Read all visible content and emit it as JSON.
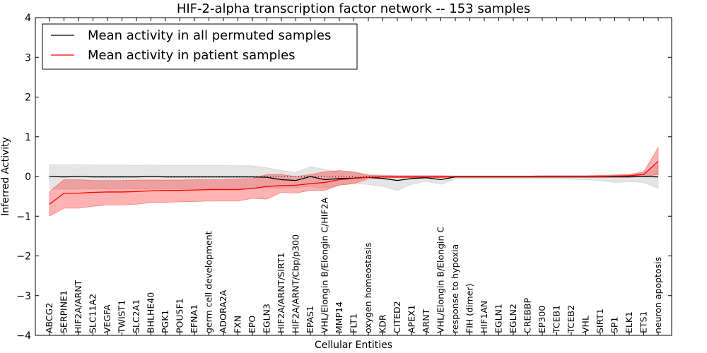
{
  "chart_data": {
    "type": "line",
    "title": "HIF-2-alpha transcription factor network -- 153 samples",
    "xlabel": "Cellular Entities",
    "ylabel": "Inferred Activity",
    "ylim": [
      -4,
      4
    ],
    "yticks": [
      4,
      3,
      2,
      1,
      0,
      -1,
      -2,
      -3,
      -4
    ],
    "ytick_labels": [
      "4",
      "3",
      "2",
      "1",
      "0",
      "−1",
      "−2",
      "−3",
      "−4"
    ],
    "reference_line": 0,
    "legend_position": "top-left",
    "categories": [
      "ABCG2",
      "SERPINE1",
      "HIF2A/ARNT",
      "SLC11A2",
      "VEGFA",
      "TWIST1",
      "SLC2A1",
      "BHLHE40",
      "PGK1",
      "POU5F1",
      "EFNA1",
      "germ cell development",
      "ADORA2A",
      "FXN",
      "EPO",
      "EGLN3",
      "HIF2A/ARNT/SIRT1",
      "HIF2A/ARNT/Cbp/p300",
      "EPAS1",
      "VHL/Elongin B/Elongin C/HIF2A",
      "MMP14",
      "FLT1",
      "oxygen homeostasis",
      "KDR",
      "CITED2",
      "APEX1",
      "ARNT",
      "VHL/Elongin B/Elongin C",
      "response to hypoxia",
      "FIH (dimer)",
      "HIF1AN",
      "EGLN1",
      "EGLN2",
      "CREBBP",
      "EP300",
      "TCEB1",
      "TCEB2",
      "VHL",
      "SIRT1",
      "SP1",
      "ELK1",
      "ETS1",
      "neuron apoptosis"
    ],
    "series": [
      {
        "name": "Mean activity in all permuted samples",
        "color": "#000000",
        "values": [
          0.0,
          -0.01,
          0.0,
          -0.01,
          -0.01,
          -0.01,
          -0.01,
          0.0,
          -0.01,
          -0.01,
          -0.01,
          -0.01,
          -0.01,
          -0.01,
          -0.01,
          -0.02,
          -0.08,
          -0.1,
          0.0,
          -0.08,
          -0.05,
          -0.04,
          -0.02,
          -0.05,
          -0.1,
          -0.05,
          -0.03,
          -0.08,
          -0.01,
          -0.01,
          -0.01,
          -0.01,
          -0.01,
          -0.01,
          -0.01,
          -0.01,
          -0.01,
          -0.01,
          -0.01,
          -0.01,
          -0.01,
          0.0,
          -0.01
        ],
        "band_upper": [
          0.3,
          0.3,
          0.3,
          0.29,
          0.29,
          0.29,
          0.28,
          0.29,
          0.28,
          0.28,
          0.28,
          0.28,
          0.28,
          0.27,
          0.27,
          0.22,
          0.15,
          0.1,
          0.25,
          0.18,
          0.12,
          0.1,
          0.05,
          0.04,
          0.02,
          0.02,
          0.02,
          0.02,
          0.02,
          0.02,
          0.02,
          0.02,
          0.02,
          0.02,
          0.02,
          0.02,
          0.02,
          0.02,
          0.02,
          0.03,
          0.05,
          0.1,
          0.3
        ],
        "band_lower": [
          -0.32,
          -0.32,
          -0.32,
          -0.31,
          -0.31,
          -0.31,
          -0.31,
          -0.31,
          -0.31,
          -0.31,
          -0.31,
          -0.31,
          -0.31,
          -0.31,
          -0.31,
          -0.28,
          -0.3,
          -0.28,
          -0.25,
          -0.3,
          -0.22,
          -0.18,
          -0.2,
          -0.25,
          -0.35,
          -0.2,
          -0.12,
          -0.2,
          -0.06,
          -0.05,
          -0.05,
          -0.05,
          -0.05,
          -0.05,
          -0.05,
          -0.06,
          -0.07,
          -0.08,
          -0.1,
          -0.15,
          -0.13,
          -0.15,
          -0.3
        ]
      },
      {
        "name": "Mean activity in patient samples",
        "color": "#ff0000",
        "values": [
          -0.7,
          -0.42,
          -0.42,
          -0.4,
          -0.39,
          -0.39,
          -0.38,
          -0.36,
          -0.35,
          -0.35,
          -0.34,
          -0.33,
          -0.33,
          -0.33,
          -0.3,
          -0.25,
          -0.23,
          -0.22,
          -0.18,
          -0.15,
          -0.08,
          -0.05,
          -0.02,
          -0.01,
          -0.01,
          -0.01,
          -0.01,
          -0.01,
          0.0,
          0.0,
          0.0,
          0.0,
          0.0,
          0.0,
          0.0,
          0.0,
          0.0,
          0.0,
          0.0,
          0.01,
          0.02,
          0.05,
          0.38
        ],
        "band_upper": [
          -0.38,
          -0.08,
          -0.08,
          -0.1,
          -0.1,
          -0.1,
          -0.09,
          -0.09,
          -0.09,
          -0.09,
          -0.08,
          -0.08,
          -0.08,
          -0.06,
          -0.05,
          0.05,
          0.05,
          0.0,
          0.05,
          0.12,
          0.15,
          0.12,
          0.03,
          0.02,
          0.02,
          0.02,
          0.02,
          0.02,
          0.01,
          0.01,
          0.01,
          0.01,
          0.01,
          0.01,
          0.02,
          0.02,
          0.02,
          0.02,
          0.03,
          0.04,
          0.05,
          0.12,
          0.73
        ],
        "band_lower": [
          -1.0,
          -0.8,
          -0.8,
          -0.75,
          -0.72,
          -0.72,
          -0.7,
          -0.66,
          -0.65,
          -0.64,
          -0.63,
          -0.62,
          -0.62,
          -0.62,
          -0.55,
          -0.57,
          -0.4,
          -0.42,
          -0.35,
          -0.35,
          -0.22,
          -0.18,
          -0.06,
          -0.04,
          -0.03,
          -0.03,
          -0.03,
          -0.03,
          -0.02,
          -0.02,
          -0.02,
          -0.02,
          -0.02,
          -0.02,
          -0.02,
          -0.02,
          -0.02,
          -0.02,
          -0.02,
          -0.01,
          0.0,
          0.0,
          0.05
        ]
      }
    ]
  }
}
